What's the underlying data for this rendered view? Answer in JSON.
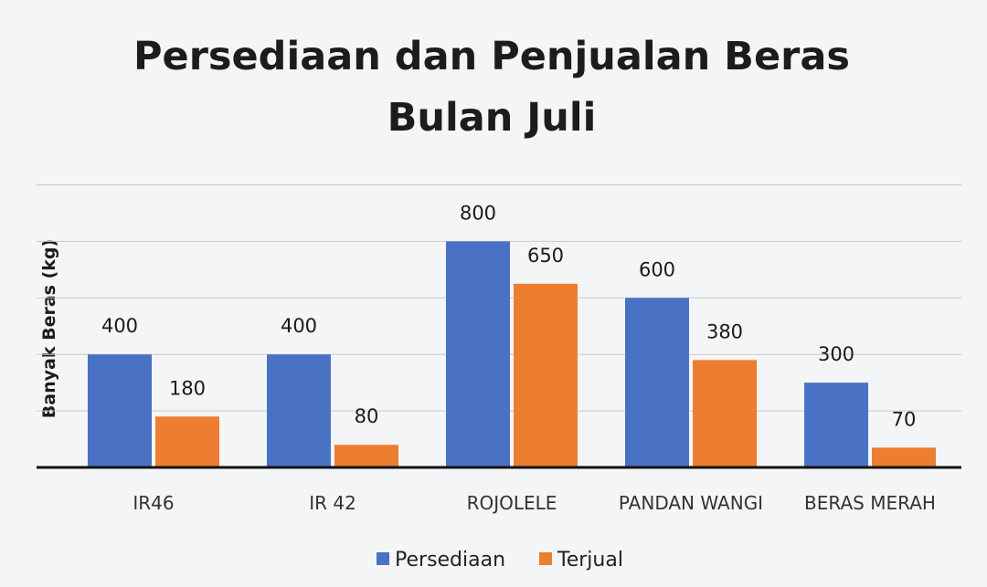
{
  "chart_data": {
    "type": "bar",
    "title_lines": [
      "Persediaan dan Penjualan Beras",
      "Bulan Juli"
    ],
    "xlabel": "",
    "ylabel": "Banyak Beras (kg)",
    "categories": [
      "IR46",
      "IR 42",
      "ROJOLELE",
      "PANDAN WANGI",
      "BERAS MERAH"
    ],
    "series": [
      {
        "name": "Persediaan",
        "values": [
          400,
          400,
          800,
          600,
          300
        ],
        "color": "#4a72c4"
      },
      {
        "name": "Terjual",
        "values": [
          180,
          80,
          650,
          380,
          70
        ],
        "color": "#ed7d31"
      }
    ],
    "ylim": [
      0,
      1000
    ],
    "grid": true,
    "legend_position": "bottom"
  }
}
